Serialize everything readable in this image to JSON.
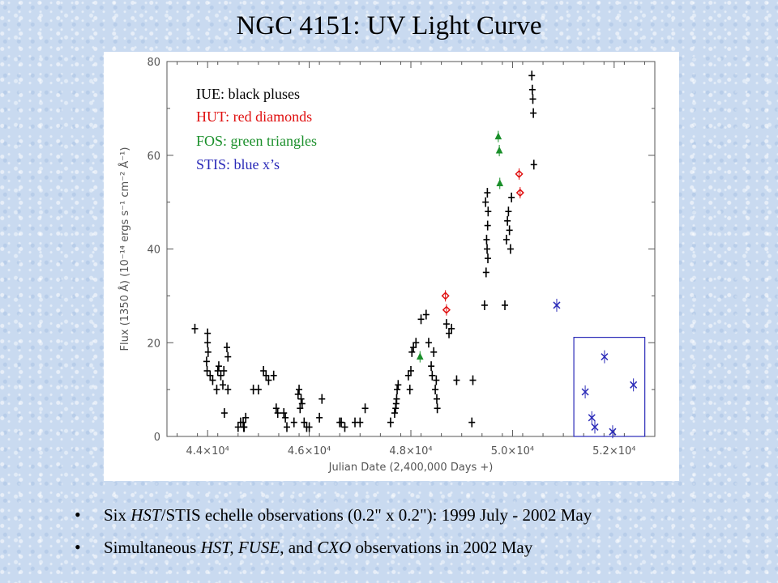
{
  "slide": {
    "title": "NGC 4151: UV Light Curve"
  },
  "legend": [
    {
      "text": "IUE:  black pluses",
      "color": "#000000"
    },
    {
      "text": "HUT: red diamonds",
      "color": "#e01010"
    },
    {
      "text": "FOS:  green triangles",
      "color": "#1a8f2a"
    },
    {
      "text": "STIS: blue x’s",
      "color": "#2a2ab8"
    }
  ],
  "bullets": {
    "b1": {
      "p1": "Six ",
      "p2": "HST",
      "p3": "/STIS echelle observations (0.2\" x 0.2\"): 1999 July - 2002 May"
    },
    "b2": {
      "p1": "Simultaneous ",
      "p2": "HST, FUSE",
      "p3": ", and ",
      "p4": "CXO",
      "p5": " observations in 2002 May"
    }
  },
  "chart_data": {
    "type": "scatter",
    "title": "",
    "xlabel": "Julian Date (2,400,000 Days +)",
    "ylabel": "Flux (1350 Å) (10⁻¹⁴ ergs s⁻¹ cm⁻² Å⁻¹)",
    "xlim": [
      43200,
      52800
    ],
    "ylim": [
      0,
      80
    ],
    "xticks": [
      {
        "value": 44000,
        "label": "4.4×10⁴"
      },
      {
        "value": 46000,
        "label": "4.6×10⁴"
      },
      {
        "value": 48000,
        "label": "4.8×10⁴"
      },
      {
        "value": 50000,
        "label": "5.0×10⁴"
      },
      {
        "value": 52000,
        "label": "5.2×10⁴"
      }
    ],
    "yticks": [
      0,
      20,
      40,
      60,
      80
    ],
    "grid": false,
    "legend_position": "top-left",
    "series": [
      {
        "name": "IUE",
        "marker": "plus",
        "color": "#000000",
        "points": [
          [
            43750,
            23
          ],
          [
            43980,
            16
          ],
          [
            43990,
            14
          ],
          [
            44000,
            20
          ],
          [
            44000,
            22
          ],
          [
            44010,
            18
          ],
          [
            44050,
            13
          ],
          [
            44100,
            12
          ],
          [
            44180,
            10
          ],
          [
            44200,
            14
          ],
          [
            44220,
            15
          ],
          [
            44260,
            13
          ],
          [
            44300,
            11
          ],
          [
            44320,
            14
          ],
          [
            44330,
            5
          ],
          [
            44380,
            19
          ],
          [
            44400,
            17
          ],
          [
            44400,
            10
          ],
          [
            44600,
            2
          ],
          [
            44650,
            3
          ],
          [
            44700,
            3
          ],
          [
            44710,
            2
          ],
          [
            44720,
            2
          ],
          [
            44750,
            4
          ],
          [
            44900,
            10
          ],
          [
            45000,
            10
          ],
          [
            45100,
            14
          ],
          [
            45150,
            13
          ],
          [
            45200,
            12
          ],
          [
            45300,
            13
          ],
          [
            45350,
            6
          ],
          [
            45380,
            5
          ],
          [
            45500,
            5
          ],
          [
            45530,
            4
          ],
          [
            45560,
            2
          ],
          [
            45700,
            3
          ],
          [
            45780,
            9
          ],
          [
            45800,
            10
          ],
          [
            45820,
            6
          ],
          [
            45840,
            8
          ],
          [
            45860,
            7
          ],
          [
            45900,
            3
          ],
          [
            45950,
            2
          ],
          [
            46000,
            2
          ],
          [
            46200,
            4
          ],
          [
            46250,
            8
          ],
          [
            46600,
            3
          ],
          [
            46630,
            3
          ],
          [
            46700,
            2
          ],
          [
            46900,
            3
          ],
          [
            47000,
            3
          ],
          [
            47100,
            6
          ],
          [
            47600,
            3
          ],
          [
            47680,
            5
          ],
          [
            47700,
            6
          ],
          [
            47710,
            7
          ],
          [
            47720,
            8
          ],
          [
            47730,
            10
          ],
          [
            47750,
            11
          ],
          [
            47950,
            13
          ],
          [
            47980,
            10
          ],
          [
            48000,
            14
          ],
          [
            48020,
            18
          ],
          [
            48050,
            19
          ],
          [
            48100,
            20
          ],
          [
            48200,
            25
          ],
          [
            48300,
            26
          ],
          [
            48350,
            20
          ],
          [
            48400,
            15
          ],
          [
            48420,
            13
          ],
          [
            48450,
            18
          ],
          [
            48480,
            10
          ],
          [
            48500,
            12
          ],
          [
            48510,
            8
          ],
          [
            48520,
            6
          ],
          [
            48700,
            24
          ],
          [
            48750,
            22
          ],
          [
            48800,
            23
          ],
          [
            48900,
            12
          ],
          [
            49200,
            3
          ],
          [
            49220,
            12
          ],
          [
            49450,
            28
          ],
          [
            49470,
            50
          ],
          [
            49480,
            35
          ],
          [
            49490,
            42
          ],
          [
            49500,
            40
          ],
          [
            49505,
            52
          ],
          [
            49510,
            45
          ],
          [
            49515,
            38
          ],
          [
            49520,
            48
          ],
          [
            49850,
            28
          ],
          [
            49880,
            42
          ],
          [
            49900,
            46
          ],
          [
            49920,
            48
          ],
          [
            49940,
            44
          ],
          [
            49960,
            40
          ],
          [
            49980,
            51
          ],
          [
            50380,
            77
          ],
          [
            50390,
            74
          ],
          [
            50400,
            72
          ],
          [
            50410,
            69
          ],
          [
            50420,
            58
          ]
        ]
      },
      {
        "name": "HUT",
        "marker": "diamond",
        "color": "#e01010",
        "points": [
          [
            48680,
            30
          ],
          [
            48700,
            27
          ],
          [
            50130,
            56
          ],
          [
            50150,
            52
          ]
        ]
      },
      {
        "name": "FOS",
        "marker": "triangle",
        "color": "#1a8f2a",
        "points": [
          [
            48180,
            17
          ],
          [
            49720,
            64
          ],
          [
            49740,
            61
          ],
          [
            49750,
            54
          ]
        ]
      },
      {
        "name": "STIS",
        "marker": "x",
        "color": "#2a2ab8",
        "points": [
          [
            50870,
            28
          ],
          [
            51430,
            9.5
          ],
          [
            51560,
            4
          ],
          [
            51620,
            2
          ],
          [
            51810,
            17
          ],
          [
            51970,
            1
          ],
          [
            52380,
            11
          ]
        ]
      }
    ]
  }
}
